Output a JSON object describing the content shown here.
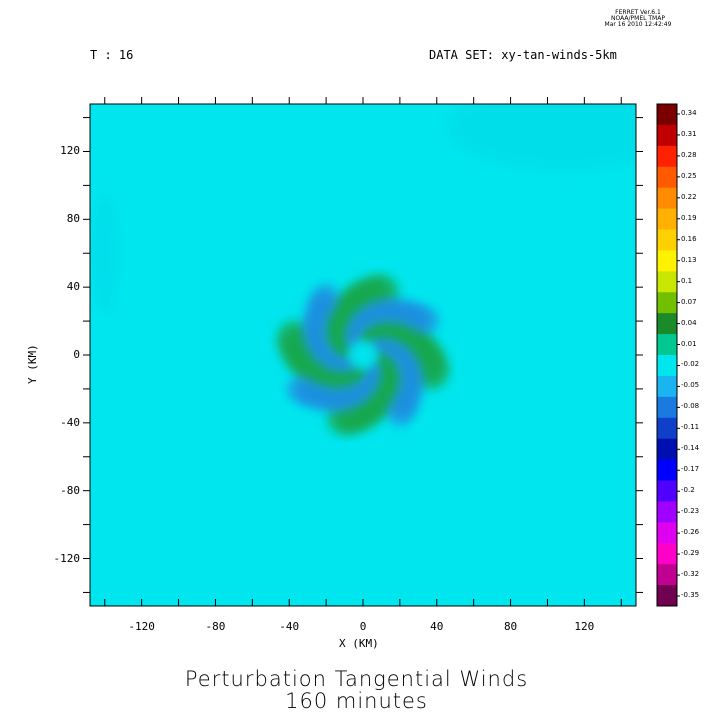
{
  "stamp": {
    "line1": "FERRET  Ver.6.1",
    "line2": "NOAA/PMEL TMAP",
    "line3": "Mar 16 2010 12:42:49"
  },
  "header": {
    "time_label": "T : 16",
    "dataset_label": "DATA SET: xy-tan-winds-5km"
  },
  "title": {
    "line1": "Perturbation Tangential Winds",
    "line2": "160 minutes"
  },
  "colors": {
    "background_field": "#00e6ee",
    "green_band": "#1aa84e",
    "blue_band": "#1f8fe0"
  },
  "chart_data": {
    "type": "heatmap",
    "xlabel": "X (KM)",
    "ylabel": "Y (KM)",
    "xlim": [
      -148,
      148
    ],
    "ylim": [
      -148,
      148
    ],
    "x_tick_labels": [
      "-120",
      "-80",
      "-40",
      "0",
      "40",
      "80",
      "120"
    ],
    "x_tick_values": [
      -120,
      -80,
      -40,
      0,
      40,
      80,
      120
    ],
    "y_tick_labels": [
      "120",
      "80",
      "40",
      "0",
      "-40",
      "-80",
      "-120"
    ],
    "y_tick_values": [
      120,
      80,
      40,
      0,
      -40,
      -80,
      -120
    ],
    "colorbar_labels": [
      "0.34",
      "0.31",
      "0.28",
      "0.25",
      "0.22",
      "0.19",
      "0.16",
      "0.13",
      "0.1",
      "0.07",
      "0.04",
      "0.01",
      "-0.02",
      "-0.05",
      "-0.08",
      "-0.11",
      "-0.14",
      "-0.17",
      "-0.2",
      "-0.23",
      "-0.26",
      "-0.29",
      "-0.32",
      "-0.35"
    ],
    "colorbar_colors": [
      "#7a0000",
      "#c00000",
      "#ff2200",
      "#ff5a00",
      "#ff8c00",
      "#ffb000",
      "#ffd000",
      "#fff200",
      "#c8e600",
      "#70c000",
      "#1a8a2a",
      "#00c890",
      "#00e6ee",
      "#1ab4f0",
      "#1a7ae0",
      "#1040c8",
      "#0010b0",
      "#0000ff",
      "#5000ff",
      "#a000ff",
      "#e000f0",
      "#ff00c8",
      "#c00090",
      "#700050"
    ],
    "arms": [
      {
        "sign": "positive",
        "start_angle_deg": 75,
        "r_start": 38,
        "r_end": 10,
        "angle_span_deg": 95
      },
      {
        "sign": "positive",
        "start_angle_deg": 165,
        "r_start": 38,
        "r_end": 10,
        "angle_span_deg": 95
      },
      {
        "sign": "positive",
        "start_angle_deg": 255,
        "r_start": 38,
        "r_end": 10,
        "angle_span_deg": 95
      },
      {
        "sign": "positive",
        "start_angle_deg": 345,
        "r_start": 38,
        "r_end": 10,
        "angle_span_deg": 95
      },
      {
        "sign": "negative",
        "start_angle_deg": 120,
        "r_start": 40,
        "r_end": 8,
        "angle_span_deg": 100
      },
      {
        "sign": "negative",
        "start_angle_deg": 210,
        "r_start": 40,
        "r_end": 8,
        "angle_span_deg": 100
      },
      {
        "sign": "negative",
        "start_angle_deg": 300,
        "r_start": 40,
        "r_end": 8,
        "angle_span_deg": 100
      },
      {
        "sign": "negative",
        "start_angle_deg": 30,
        "r_start": 40,
        "r_end": 8,
        "angle_span_deg": 100
      }
    ]
  }
}
